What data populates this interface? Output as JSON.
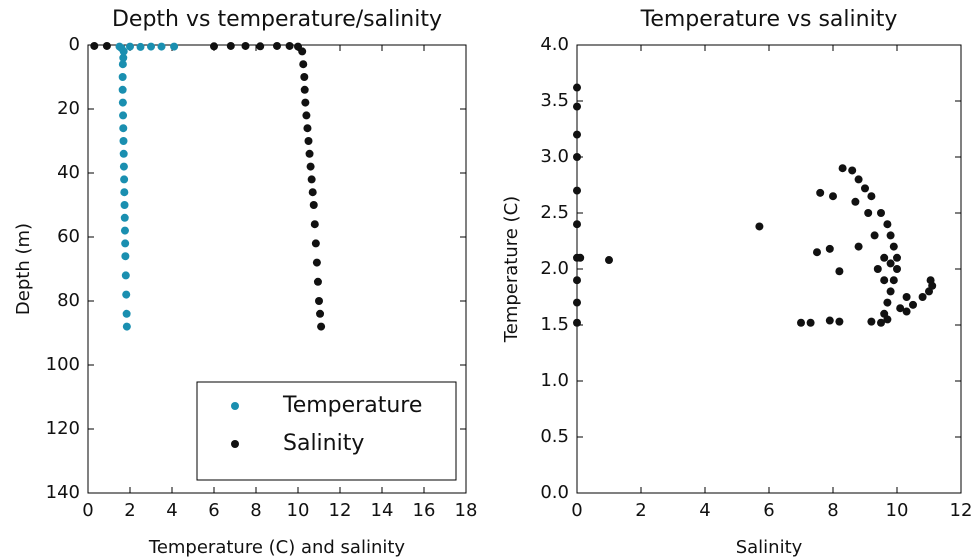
{
  "chart_data": [
    {
      "type": "scatter",
      "title": "Depth vs temperature/salinity",
      "x_label": "Temperature (C) and salinity",
      "y_label": "Depth (m)",
      "xlim": [
        0,
        18
      ],
      "xticks": [
        0,
        2,
        4,
        6,
        8,
        10,
        12,
        14,
        16,
        18
      ],
      "ylim": [
        0,
        140
      ],
      "yticks": [
        0,
        20,
        40,
        60,
        80,
        100,
        120,
        140
      ],
      "y_inverted": true,
      "legend": "lower right",
      "series": [
        {
          "name": "Temperature",
          "color": "#1a8fb0",
          "x": [
            1.5,
            2.0,
            2.5,
            3.0,
            3.5,
            4.1,
            1.6,
            1.7,
            1.68,
            1.66,
            1.65,
            1.65,
            1.66,
            1.67,
            1.68,
            1.69,
            1.7,
            1.71,
            1.72,
            1.73,
            1.74,
            1.75,
            1.76,
            1.77,
            1.78,
            1.8,
            1.82,
            1.84,
            1.85
          ],
          "values": [
            0.5,
            0.5,
            0.6,
            0.5,
            0.5,
            0.5,
            1,
            2,
            4,
            6,
            10,
            14,
            18,
            22,
            26,
            30,
            34,
            38,
            42,
            46,
            50,
            54,
            58,
            62,
            66,
            72,
            78,
            84,
            88
          ]
        },
        {
          "name": "Salinity",
          "color": "#111111",
          "x": [
            0.3,
            0.9,
            6.0,
            6.8,
            7.5,
            8.2,
            9.0,
            9.6,
            10.0,
            10.2,
            10.25,
            10.3,
            10.32,
            10.35,
            10.4,
            10.45,
            10.5,
            10.55,
            10.6,
            10.65,
            10.7,
            10.75,
            10.8,
            10.85,
            10.9,
            10.95,
            11.0,
            11.05,
            11.1
          ],
          "values": [
            0.3,
            0.3,
            0.4,
            0.3,
            0.3,
            0.4,
            0.3,
            0.3,
            0.5,
            2,
            6,
            10,
            14,
            18,
            22,
            26,
            30,
            34,
            38,
            42,
            46,
            50,
            56,
            62,
            68,
            74,
            80,
            84,
            88
          ]
        }
      ]
    },
    {
      "type": "scatter",
      "title": "Temperature vs salinity",
      "x_label": "Salinity",
      "y_label": "Temperature (C)",
      "xlim": [
        0,
        12
      ],
      "xticks": [
        0,
        2,
        4,
        6,
        8,
        10,
        12
      ],
      "ylim": [
        0,
        4
      ],
      "yticks": [
        {
          "value": 0,
          "label": "0.0"
        },
        0.5,
        {
          "value": 1,
          "label": "1.0"
        },
        1.5,
        {
          "value": 2,
          "label": "2.0"
        },
        2.5,
        {
          "value": 3,
          "label": "3.0"
        },
        3.5,
        {
          "value": 4,
          "label": "4.0"
        }
      ],
      "series": [
        {
          "color": "#111111",
          "x": [
            0,
            0,
            0,
            0,
            0,
            0,
            0,
            0,
            0,
            0,
            0.1,
            1.0,
            5.7,
            7.0,
            7.3,
            7.9,
            8.2,
            7.6,
            8.0,
            8.3,
            8.6,
            8.8,
            9.0,
            7.5,
            7.9,
            8.2,
            8.8,
            9.2,
            9.5,
            9.7,
            9.8,
            9.9,
            10.0,
            10.0,
            9.9,
            9.8,
            9.7,
            9.6,
            9.7,
            9.5,
            9.2,
            10.1,
            10.3,
            10.5,
            10.8,
            11.0,
            11.1,
            11.05,
            10.3,
            9.6,
            9.4,
            9.6,
            9.8,
            9.3,
            9.1,
            8.7
          ],
          "values": [
            1.52,
            1.7,
            1.9,
            2.1,
            2.4,
            2.7,
            3.0,
            3.2,
            3.45,
            3.62,
            2.1,
            2.08,
            2.38,
            1.52,
            1.52,
            1.54,
            1.53,
            2.68,
            2.65,
            2.9,
            2.88,
            2.8,
            2.72,
            2.15,
            2.18,
            1.98,
            2.2,
            2.65,
            2.5,
            2.4,
            2.3,
            2.2,
            2.1,
            2.0,
            1.9,
            1.8,
            1.7,
            1.6,
            1.55,
            1.52,
            1.53,
            1.65,
            1.62,
            1.68,
            1.75,
            1.8,
            1.85,
            1.9,
            1.75,
            1.9,
            2.0,
            2.1,
            2.05,
            2.3,
            2.5,
            2.6
          ]
        }
      ]
    }
  ]
}
